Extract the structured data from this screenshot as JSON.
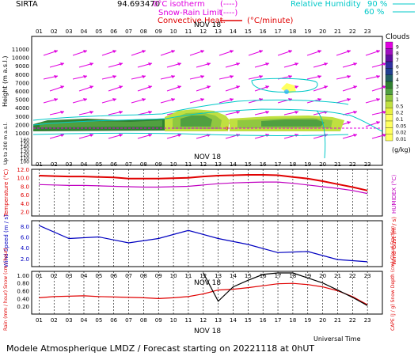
{
  "header": {
    "station": "SIRTA",
    "coords": "94.693470",
    "legend_isotherm": "0°C isotherm",
    "legend_isotherm_mark": "(----)",
    "legend_snow_rain": "Snow-Rain Limit",
    "legend_snow_rain_mark": "(----)",
    "legend_convective": "Convective Heat.",
    "legend_convective_unit": "(°C/minute)",
    "legend_rh": "Relative Humidity",
    "legend_rh_90": "90 %",
    "legend_rh_60": "60 %"
  },
  "footer": {
    "title": "Modele Atmospherique LMDZ / Forecast starting on 20221118 at 0hUT",
    "universal_time": "Universal Time"
  },
  "colors": {
    "temperature": "#e00000",
    "humidex": "#c000c0",
    "wind_speed": "#0000c0",
    "rain": "#e00000",
    "cape": "#000000",
    "clouds_scale": [
      "#ffff60",
      "#e8f040",
      "#c0e040",
      "#90c840",
      "#50a040",
      "#308030",
      "#206060",
      "#204090",
      "#3030a0",
      "#6010a0",
      "#a010c0",
      "#e000e0"
    ]
  },
  "chart_data": [
    {
      "type": "heatmap",
      "panel": "clouds",
      "date_label": "NOV 18",
      "hours": [
        "01",
        "02",
        "03",
        "04",
        "05",
        "06",
        "07",
        "08",
        "09",
        "10",
        "11",
        "12",
        "13",
        "14",
        "15",
        "16",
        "17",
        "18",
        "19",
        "20",
        "21",
        "22",
        "23"
      ],
      "ylabel": "Height (m a.s.l.)",
      "ylabel_low": "Up to 200 m a.s.l.",
      "yticks_upper": [
        11000,
        10000,
        9000,
        8000,
        7000,
        6000,
        5000,
        4000,
        3000,
        2000,
        1000
      ],
      "yticks_lower": [
        160,
        150,
        140,
        130,
        120,
        110,
        100
      ],
      "colorbar_title": "Clouds",
      "colorbar_levels": [
        "0.01",
        "0.02",
        "0.05",
        "0.1",
        "0.2",
        "0.5",
        "1",
        "2",
        "3",
        "4",
        "5",
        "6",
        "7",
        "8",
        "9"
      ],
      "colorbar_unit": "(g/kg)",
      "annotations": [
        "90",
        "60",
        "90"
      ]
    },
    {
      "type": "line",
      "panel": "temperature",
      "ylabel": "Temperature (°C)",
      "ylabel_right": "HUMIDEX (°C)",
      "yticks": [
        "12.0",
        "10.0",
        "8.0",
        "6.0",
        "4.0",
        "2.0"
      ],
      "ylim": [
        1.0,
        12.0
      ],
      "x": [
        1,
        2,
        3,
        4,
        5,
        6,
        7,
        8,
        9,
        10,
        11,
        12,
        13,
        14,
        15,
        16,
        17,
        18,
        19,
        20,
        21,
        22,
        23
      ],
      "series": [
        {
          "values": [
            10.5,
            10.4,
            10.3,
            10.3,
            10.2,
            10.1,
            9.8,
            9.8,
            9.8,
            9.9,
            10.0,
            10.3,
            10.5,
            10.6,
            10.7,
            10.7,
            10.6,
            10.2,
            9.8,
            9.2,
            8.5,
            7.8,
            7.0
          ]
        },
        {
          "values": [
            8.4,
            8.3,
            8.2,
            8.2,
            8.1,
            8.0,
            7.9,
            7.8,
            7.8,
            7.9,
            8.0,
            8.3,
            8.6,
            8.8,
            8.9,
            9.0,
            9.0,
            8.7,
            8.3,
            7.9,
            7.5,
            7.0,
            6.3
          ]
        }
      ]
    },
    {
      "type": "line",
      "panel": "wind",
      "ylabel": "Wind Speed (m / s)",
      "ylabel_right": "Wind Gust (m / s)",
      "yticks": [
        "8.0",
        "6.0",
        "4.0",
        "2.0"
      ],
      "ylim": [
        0.5,
        9.0
      ],
      "x": [
        1,
        3,
        5,
        7,
        9,
        11,
        13,
        15,
        17,
        19,
        21,
        23
      ],
      "series": [
        {
          "values": [
            8.1,
            5.7,
            6.0,
            4.9,
            5.7,
            7.2,
            5.7,
            4.6,
            3.1,
            3.3,
            1.8,
            1.4
          ]
        }
      ]
    },
    {
      "type": "line",
      "panel": "precip",
      "ylabel": "Rain (mm / hour) Snow (cm / hour)",
      "ylabel_right": "CAPE (J / g) Snow Depth (cm) Cloud Fraction",
      "yticks": [
        "1.00",
        "0.80",
        "0.60",
        "0.40",
        "0.20"
      ],
      "ylim": [
        0.0,
        1.1
      ],
      "x": [
        1,
        2,
        3,
        4,
        5,
        6,
        7,
        8,
        9,
        10,
        11,
        12,
        13,
        14,
        15,
        16,
        17,
        18,
        19,
        20,
        21,
        22,
        23
      ],
      "series": [
        {
          "values": [
            0.42,
            0.45,
            0.46,
            0.47,
            0.45,
            0.44,
            0.43,
            0.42,
            0.4,
            0.42,
            0.45,
            0.52,
            0.62,
            0.64,
            0.68,
            0.73,
            0.78,
            0.79,
            0.76,
            0.7,
            0.6,
            0.45,
            0.24
          ]
        },
        {
          "values": [
            null,
            null,
            null,
            null,
            null,
            null,
            null,
            null,
            null,
            null,
            null,
            1.06,
            0.33,
            0.7,
            0.87,
            1.02,
            1.06,
            1.06,
            0.93,
            0.8,
            0.62,
            0.43,
            0.22
          ]
        }
      ]
    }
  ]
}
